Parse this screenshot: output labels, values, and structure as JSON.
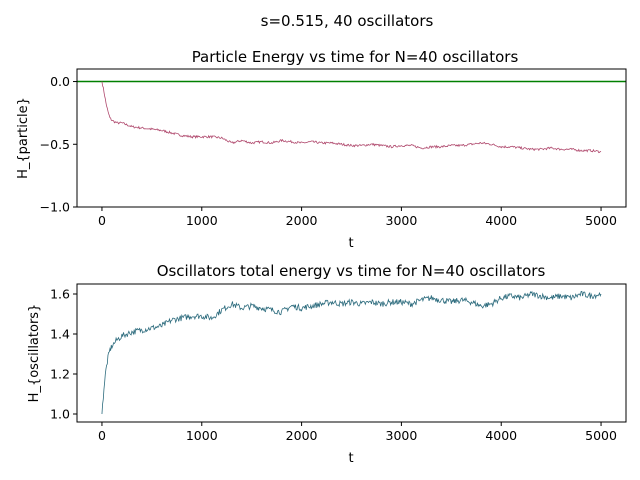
{
  "figure": {
    "suptitle": "s=0.515, 40 oscillators",
    "background": "#ffffff"
  },
  "chart_data": [
    {
      "type": "line",
      "title": "Particle Energy vs time for N=40 oscillators",
      "xlabel": "t",
      "ylabel": "H_{particle}",
      "xlim": [
        -250,
        5250
      ],
      "ylim": [
        -1.0,
        0.1
      ],
      "xticks": [
        0,
        1000,
        2000,
        3000,
        4000,
        5000
      ],
      "xtick_labels": [
        "0",
        "1000",
        "2000",
        "3000",
        "4000",
        "5000"
      ],
      "yticks": [
        -1.0,
        -0.5,
        0.0
      ],
      "ytick_labels": [
        "−1.0",
        "−0.5",
        "0.0"
      ],
      "grid": false,
      "hline": {
        "y": 0.0,
        "color": "#008000"
      },
      "series": [
        {
          "color": "#b04a6e",
          "x": [
            0,
            20,
            40,
            60,
            80,
            100,
            150,
            200,
            300,
            400,
            500,
            600,
            700,
            800,
            900,
            1000,
            1100,
            1200,
            1300,
            1400,
            1500,
            1600,
            1700,
            1800,
            1900,
            2000,
            2100,
            2200,
            2300,
            2400,
            2500,
            2600,
            2700,
            2800,
            2900,
            3000,
            3100,
            3200,
            3300,
            3400,
            3500,
            3600,
            3700,
            3800,
            3900,
            4000,
            4100,
            4200,
            4300,
            4400,
            4500,
            4600,
            4700,
            4800,
            4900,
            5000
          ],
          "y": [
            0.0,
            -0.08,
            -0.17,
            -0.24,
            -0.29,
            -0.31,
            -0.33,
            -0.33,
            -0.36,
            -0.37,
            -0.38,
            -0.39,
            -0.41,
            -0.43,
            -0.44,
            -0.44,
            -0.44,
            -0.45,
            -0.49,
            -0.47,
            -0.49,
            -0.48,
            -0.49,
            -0.47,
            -0.48,
            -0.49,
            -0.48,
            -0.49,
            -0.49,
            -0.5,
            -0.51,
            -0.51,
            -0.5,
            -0.51,
            -0.52,
            -0.51,
            -0.51,
            -0.53,
            -0.52,
            -0.52,
            -0.51,
            -0.51,
            -0.5,
            -0.49,
            -0.5,
            -0.52,
            -0.52,
            -0.53,
            -0.54,
            -0.54,
            -0.53,
            -0.54,
            -0.54,
            -0.55,
            -0.55,
            -0.56
          ]
        }
      ]
    },
    {
      "type": "line",
      "title": "Oscillators total energy vs time for N=40 oscillators",
      "xlabel": "t",
      "ylabel": "H_{oscillators}",
      "xlim": [
        -250,
        5250
      ],
      "ylim": [
        0.96,
        1.65
      ],
      "xticks": [
        0,
        1000,
        2000,
        3000,
        4000,
        5000
      ],
      "xtick_labels": [
        "0",
        "1000",
        "2000",
        "3000",
        "4000",
        "5000"
      ],
      "yticks": [
        1.0,
        1.2,
        1.4,
        1.6
      ],
      "ytick_labels": [
        "1.0",
        "1.2",
        "1.4",
        "1.6"
      ],
      "grid": false,
      "series": [
        {
          "color": "#2c6b7d",
          "x": [
            0,
            20,
            40,
            60,
            80,
            100,
            150,
            200,
            300,
            400,
            500,
            600,
            700,
            800,
            900,
            1000,
            1100,
            1200,
            1300,
            1400,
            1500,
            1600,
            1700,
            1800,
            1900,
            2000,
            2100,
            2200,
            2300,
            2400,
            2500,
            2600,
            2700,
            2800,
            2900,
            3000,
            3100,
            3200,
            3300,
            3400,
            3500,
            3600,
            3700,
            3800,
            3900,
            4000,
            4100,
            4200,
            4300,
            4400,
            4500,
            4600,
            4700,
            4800,
            4900,
            5000
          ],
          "y": [
            1.0,
            1.13,
            1.22,
            1.28,
            1.32,
            1.34,
            1.37,
            1.39,
            1.41,
            1.42,
            1.43,
            1.44,
            1.47,
            1.48,
            1.49,
            1.49,
            1.48,
            1.52,
            1.55,
            1.53,
            1.54,
            1.53,
            1.52,
            1.51,
            1.54,
            1.53,
            1.54,
            1.55,
            1.56,
            1.55,
            1.56,
            1.55,
            1.56,
            1.55,
            1.56,
            1.56,
            1.55,
            1.57,
            1.58,
            1.57,
            1.56,
            1.57,
            1.56,
            1.54,
            1.55,
            1.58,
            1.59,
            1.58,
            1.6,
            1.59,
            1.58,
            1.59,
            1.58,
            1.6,
            1.59,
            1.6
          ]
        }
      ]
    }
  ]
}
